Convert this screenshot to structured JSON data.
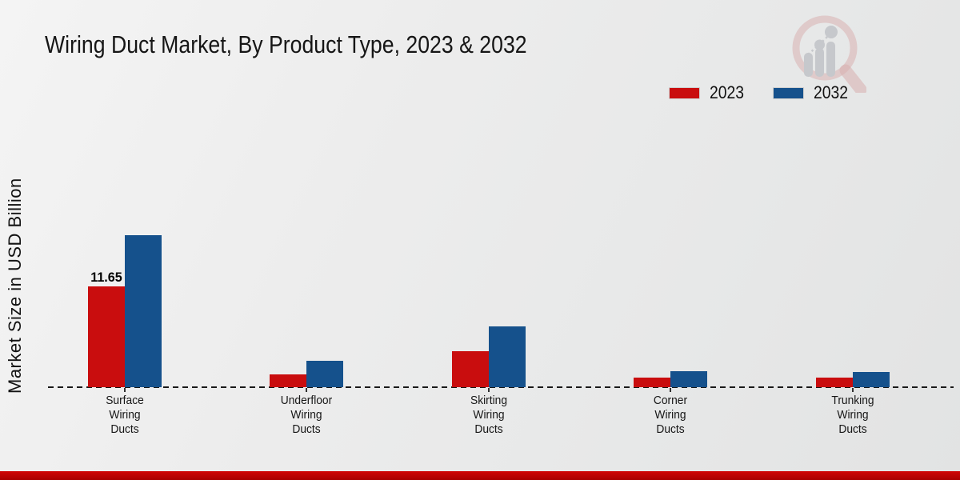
{
  "header": {
    "title": "Wiring Duct Market, By Product Type, 2023 & 2032"
  },
  "axes": {
    "y_axis_label": "Market Size in USD Billion"
  },
  "legend": {
    "position": "top-right",
    "items": [
      {
        "label": "2023",
        "color": "#c90d0e"
      },
      {
        "label": "2032",
        "color": "#15518c"
      }
    ]
  },
  "footer": {
    "bar_color": "#bf0304"
  },
  "logo": {
    "name": "magnifier-bar-chart-logo",
    "ring_color": "#d8b0b0",
    "glyph_color": "#c6c8cc"
  },
  "chart_data": {
    "type": "bar",
    "title": "Wiring Duct Market, By Product Type, 2023 & 2032",
    "xlabel": "",
    "ylabel": "Market Size in USD Billion",
    "grid": false,
    "baseline": "dashed zero line",
    "legend_position": "top-right",
    "ylim": [
      0,
      20
    ],
    "categories": [
      "Surface Wiring Ducts",
      "Underfloor Wiring Ducts",
      "Skirting Wiring Ducts",
      "Corner Wiring Ducts",
      "Trunking Wiring Ducts"
    ],
    "category_label_lines": [
      [
        "Surface",
        "Wiring",
        "Ducts"
      ],
      [
        "Underfloor",
        "Wiring",
        "Ducts"
      ],
      [
        "Skirting",
        "Wiring",
        "Ducts"
      ],
      [
        "Corner",
        "Wiring",
        "Ducts"
      ],
      [
        "Trunking",
        "Wiring",
        "Ducts"
      ]
    ],
    "series": [
      {
        "name": "2023",
        "color": "#c90d0e",
        "values": [
          11.65,
          1.5,
          4.2,
          1.1,
          1.1
        ]
      },
      {
        "name": "2032",
        "color": "#15518c",
        "values": [
          17.6,
          3.1,
          7.0,
          1.9,
          1.8
        ]
      }
    ],
    "value_labels": [
      {
        "category_index": 0,
        "series_index": 0,
        "text": "11.65"
      }
    ]
  }
}
